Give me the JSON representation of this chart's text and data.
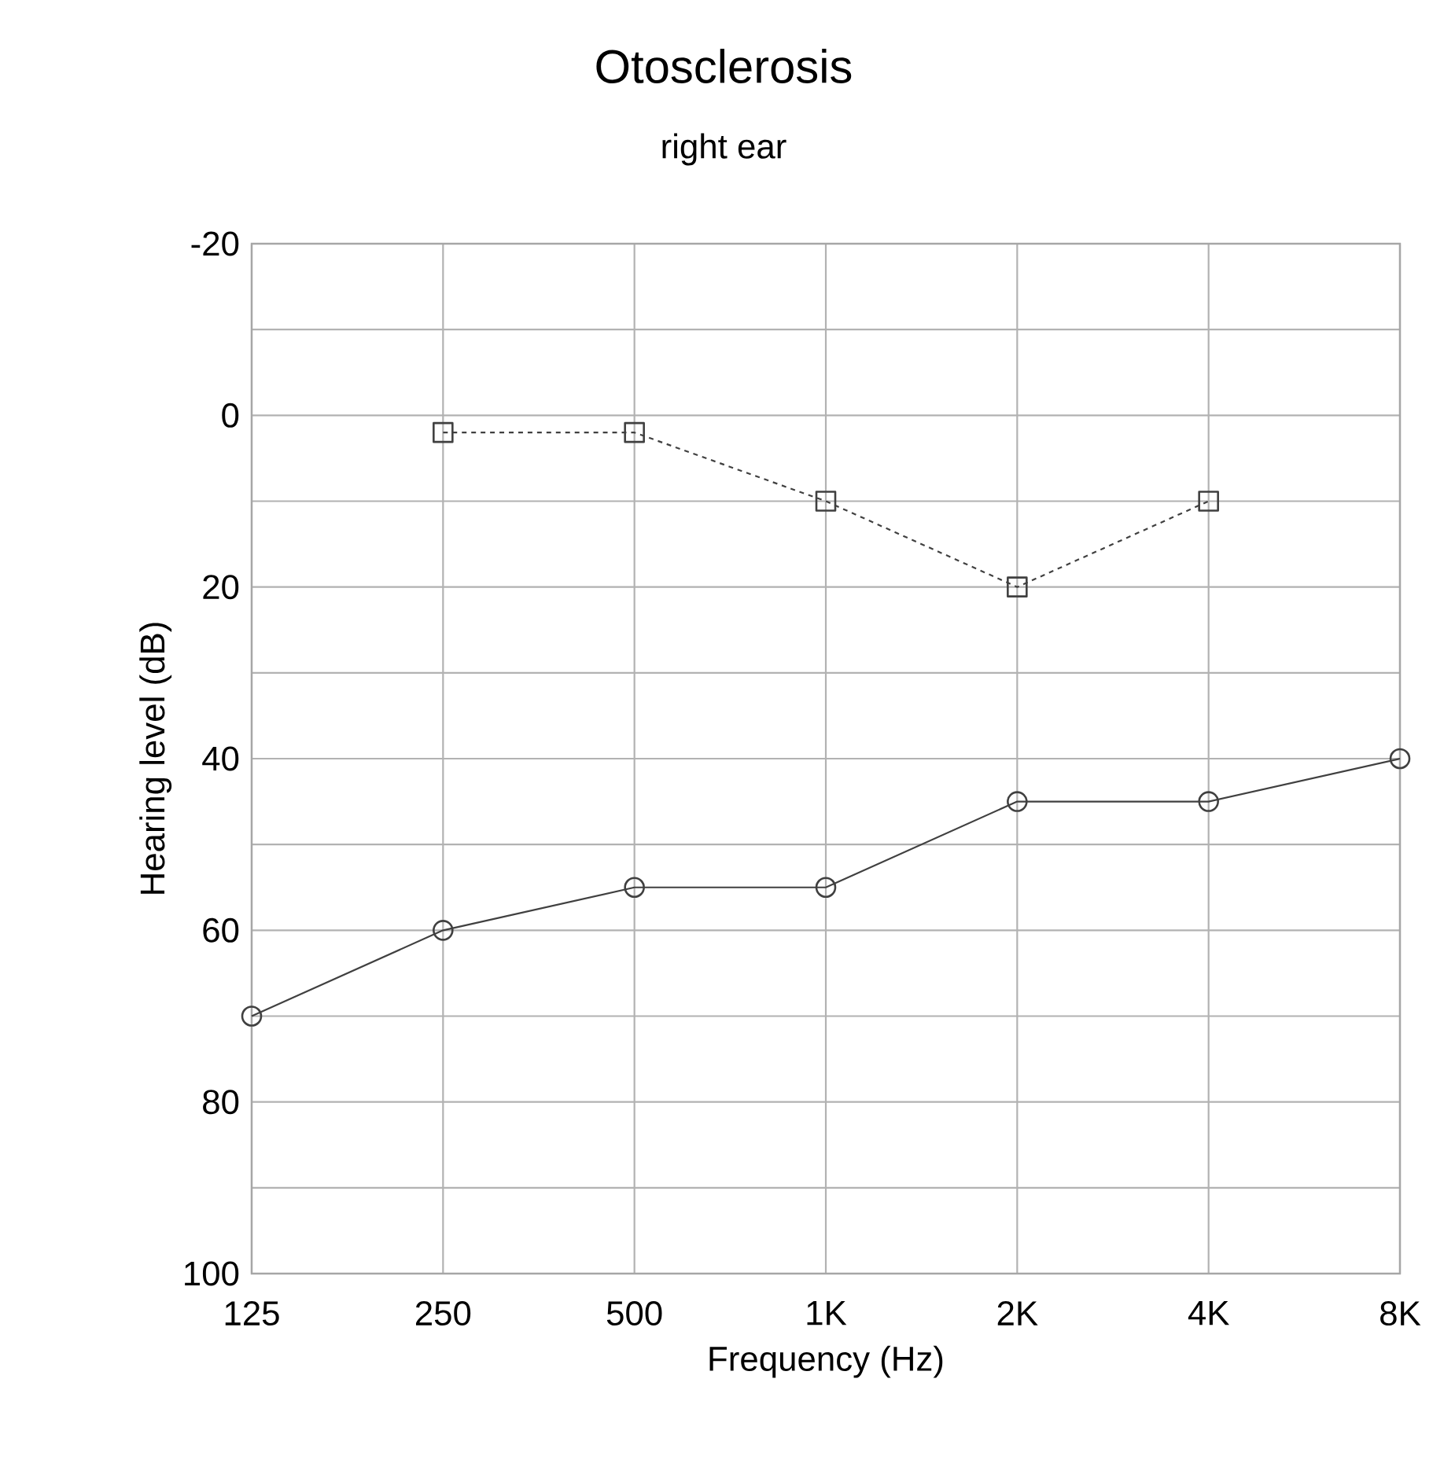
{
  "chart_data": {
    "type": "line",
    "title": "Otosclerosis",
    "subtitle": "right ear",
    "xlabel": "Frequency (Hz)",
    "ylabel": "Hearing level (dB)",
    "categories": [
      "125",
      "250",
      "500",
      "1K",
      "2K",
      "4K",
      "8K"
    ],
    "series": [
      {
        "color": "#404040",
        "values": [
          null,
          2,
          2,
          10,
          20,
          10,
          null
        ],
        "marker": "square",
        "line_style": "dashed"
      },
      {
        "color": "#404040",
        "values": [
          70,
          60,
          55,
          55,
          45,
          45,
          40
        ],
        "marker": "circle",
        "line_style": "solid"
      }
    ],
    "ylim": [
      100,
      -20
    ],
    "yticks": [
      -20,
      {
        "value": -10,
        "label": null
      },
      0,
      {
        "value": 10,
        "label": null
      },
      20,
      {
        "value": 30,
        "label": null
      },
      40,
      {
        "value": 50,
        "label": null
      },
      60,
      {
        "value": 70,
        "label": null
      },
      80,
      {
        "value": 90,
        "label": null
      },
      100
    ],
    "grid": true
  }
}
